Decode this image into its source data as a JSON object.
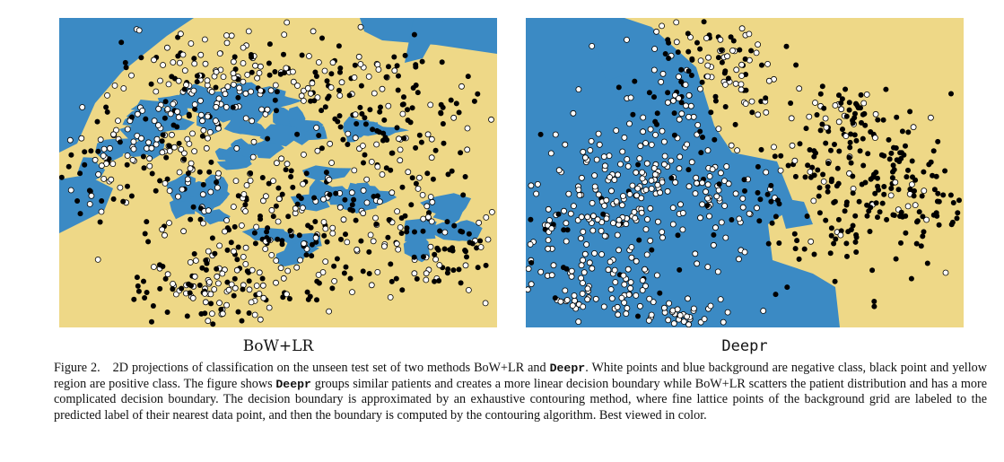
{
  "panels": [
    {
      "name": "BoW+LR"
    },
    {
      "name": "Deepr"
    }
  ],
  "caption": {
    "label": "Figure 2.",
    "seg1": "2D projections of classification on the unseen test set of two methods BoW+LR and ",
    "code1": "Deepr",
    "seg2": ". White points and blue background are negative class, black point and yellow region are positive class. The figure shows ",
    "code2": "Deepr",
    "seg3": " groups similar patients and creates a more linear decision boundary while BoW+LR scatters the patient distribution and has a more complicated decision boundary. The decision boundary is approximated by an exhaustive contouring method, where fine lattice points of the background grid are labeled to the predicted label of their nearest data point, and then the boundary is computed by the contouring algorithm. Best viewed in color."
  },
  "colors": {
    "positive_region": "#eed887",
    "negative_region": "#3b8ac4",
    "positive_point": "#000000",
    "negative_point": "#ffffff"
  }
}
